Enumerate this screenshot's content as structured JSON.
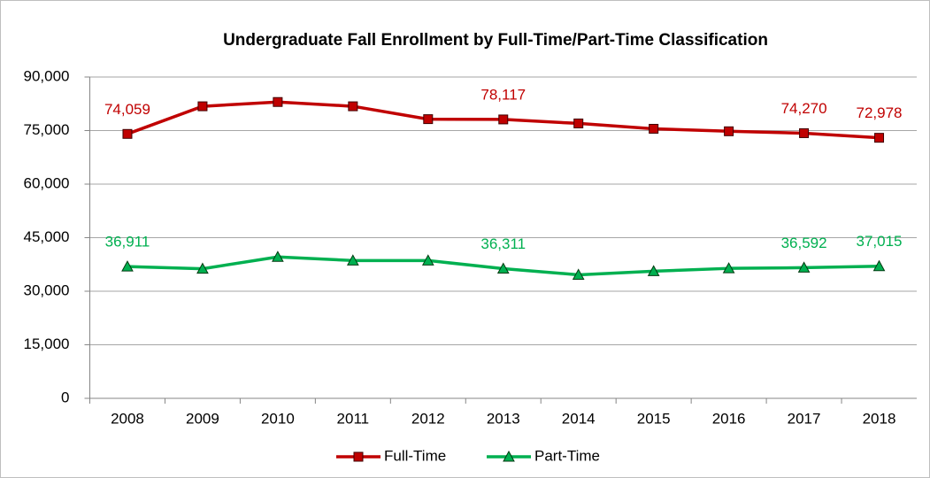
{
  "chart_data": {
    "type": "line",
    "title": "Undergraduate Fall Enrollment by Full-Time/Part-Time Classification",
    "categories": [
      "2008",
      "2009",
      "2010",
      "2011",
      "2012",
      "2013",
      "2014",
      "2015",
      "2016",
      "2017",
      "2018"
    ],
    "series": [
      {
        "name": "Full-Time",
        "color": "#c00000",
        "marker": "square",
        "values": [
          74059,
          81800,
          83000,
          81800,
          78200,
          78117,
          77000,
          75500,
          74800,
          74270,
          72978
        ],
        "value_labels": [
          "74,059",
          null,
          null,
          null,
          null,
          "78,117",
          null,
          null,
          null,
          "74,270",
          "72,978"
        ]
      },
      {
        "name": "Part-Time",
        "color": "#00b050",
        "marker": "triangle",
        "values": [
          36911,
          36300,
          39600,
          38600,
          38600,
          36311,
          34600,
          35600,
          36400,
          36592,
          37015
        ],
        "value_labels": [
          "36,911",
          null,
          null,
          null,
          null,
          "36,311",
          null,
          null,
          null,
          "36,592",
          "37,015"
        ]
      }
    ],
    "ylim": [
      0,
      90000
    ],
    "yticks": [
      0,
      {
        "value": 15000,
        "label": "15,000"
      },
      {
        "value": 30000,
        "label": "30,000"
      },
      {
        "value": 45000,
        "label": "45,000"
      },
      {
        "value": 60000,
        "label": "60,000"
      },
      {
        "value": 75000,
        "label": "75,000"
      },
      {
        "value": 90000,
        "label": "90,000"
      }
    ],
    "grid": true,
    "legend": "bottom"
  }
}
